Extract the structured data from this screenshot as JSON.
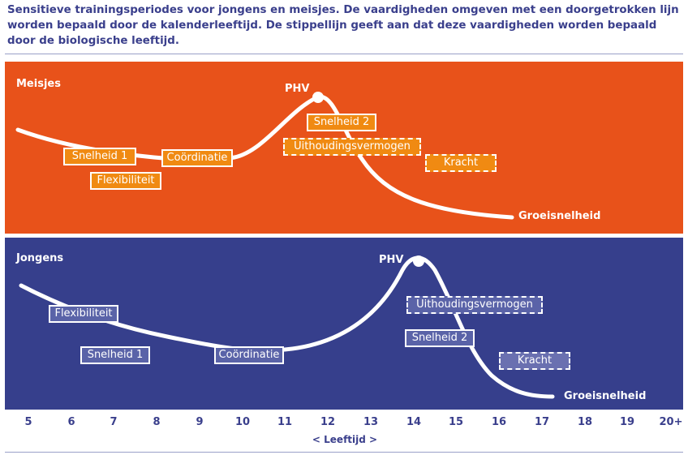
{
  "caption": "Sensitieve trainingsperiodes voor jongens en meisjes. De vaardigheden omgeven met een doorgetrokken lijn worden bepaald door de kalenderleeftijd. De stippellijn geeft aan dat deze vaardigheden worden bepaald door de biologische leeftijd.",
  "colors": {
    "girls_bg": "#e8521a",
    "boys_bg": "#363f8c",
    "text_blue": "#3a3f8c"
  },
  "girls": {
    "title": "Meisjes",
    "phv": "PHV",
    "growth_label": "Groeisnelheid",
    "tags": [
      {
        "text": "Snelheid 1",
        "style": "solid"
      },
      {
        "text": "Coördinatie",
        "style": "solid"
      },
      {
        "text": "Flexibiliteit",
        "style": "solid"
      },
      {
        "text": "Snelheid 2",
        "style": "solid"
      },
      {
        "text": "Uithoudingsvermogen",
        "style": "dashed"
      },
      {
        "text": "Kracht",
        "style": "dashed"
      }
    ]
  },
  "boys": {
    "title": "Jongens",
    "phv": "PHV",
    "growth_label": "Groeisnelheid",
    "tags": [
      {
        "text": "Flexibiliteit",
        "style": "solid"
      },
      {
        "text": "Snelheid 1",
        "style": "solid"
      },
      {
        "text": "Coördinatie",
        "style": "solid"
      },
      {
        "text": "Uithoudingsvermogen",
        "style": "dashed"
      },
      {
        "text": "Snelheid 2",
        "style": "solid"
      },
      {
        "text": "Kracht",
        "style": "dashed"
      }
    ]
  },
  "axis": {
    "ticks": [
      "5",
      "6",
      "7",
      "8",
      "9",
      "10",
      "11",
      "12",
      "13",
      "14",
      "15",
      "16",
      "17",
      "18",
      "19",
      "20+"
    ],
    "title": "< Leeftijd >"
  }
}
